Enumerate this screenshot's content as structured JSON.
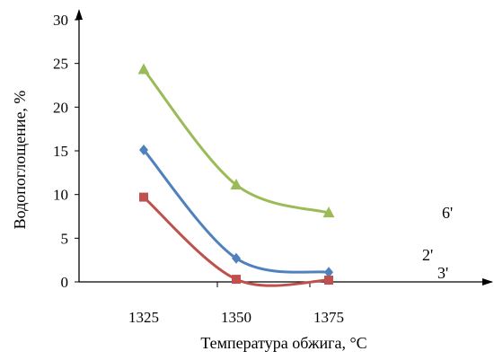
{
  "chart_data": {
    "type": "line",
    "title": "",
    "xlabel": "Температура обжига, °С",
    "ylabel": "Водопоглощение, %",
    "categories": [
      "1325",
      "1350",
      "1375"
    ],
    "ylim": [
      0,
      30
    ],
    "yticks": [
      "0",
      "5",
      "10",
      "15",
      "20",
      "25",
      "30"
    ],
    "grid": false,
    "legend": "none",
    "smooth": true,
    "series": [
      {
        "name": "6'",
        "values": [
          24.3,
          11.1,
          7.9
        ],
        "color": "#9bbb59",
        "marker": "triangle"
      },
      {
        "name": "2'",
        "values": [
          15.1,
          2.7,
          1.1
        ],
        "color": "#4f81bd",
        "marker": "diamond"
      },
      {
        "name": "3'",
        "values": [
          9.7,
          0.3,
          0.2
        ],
        "color": "#c0504d",
        "marker": "square"
      }
    ]
  }
}
